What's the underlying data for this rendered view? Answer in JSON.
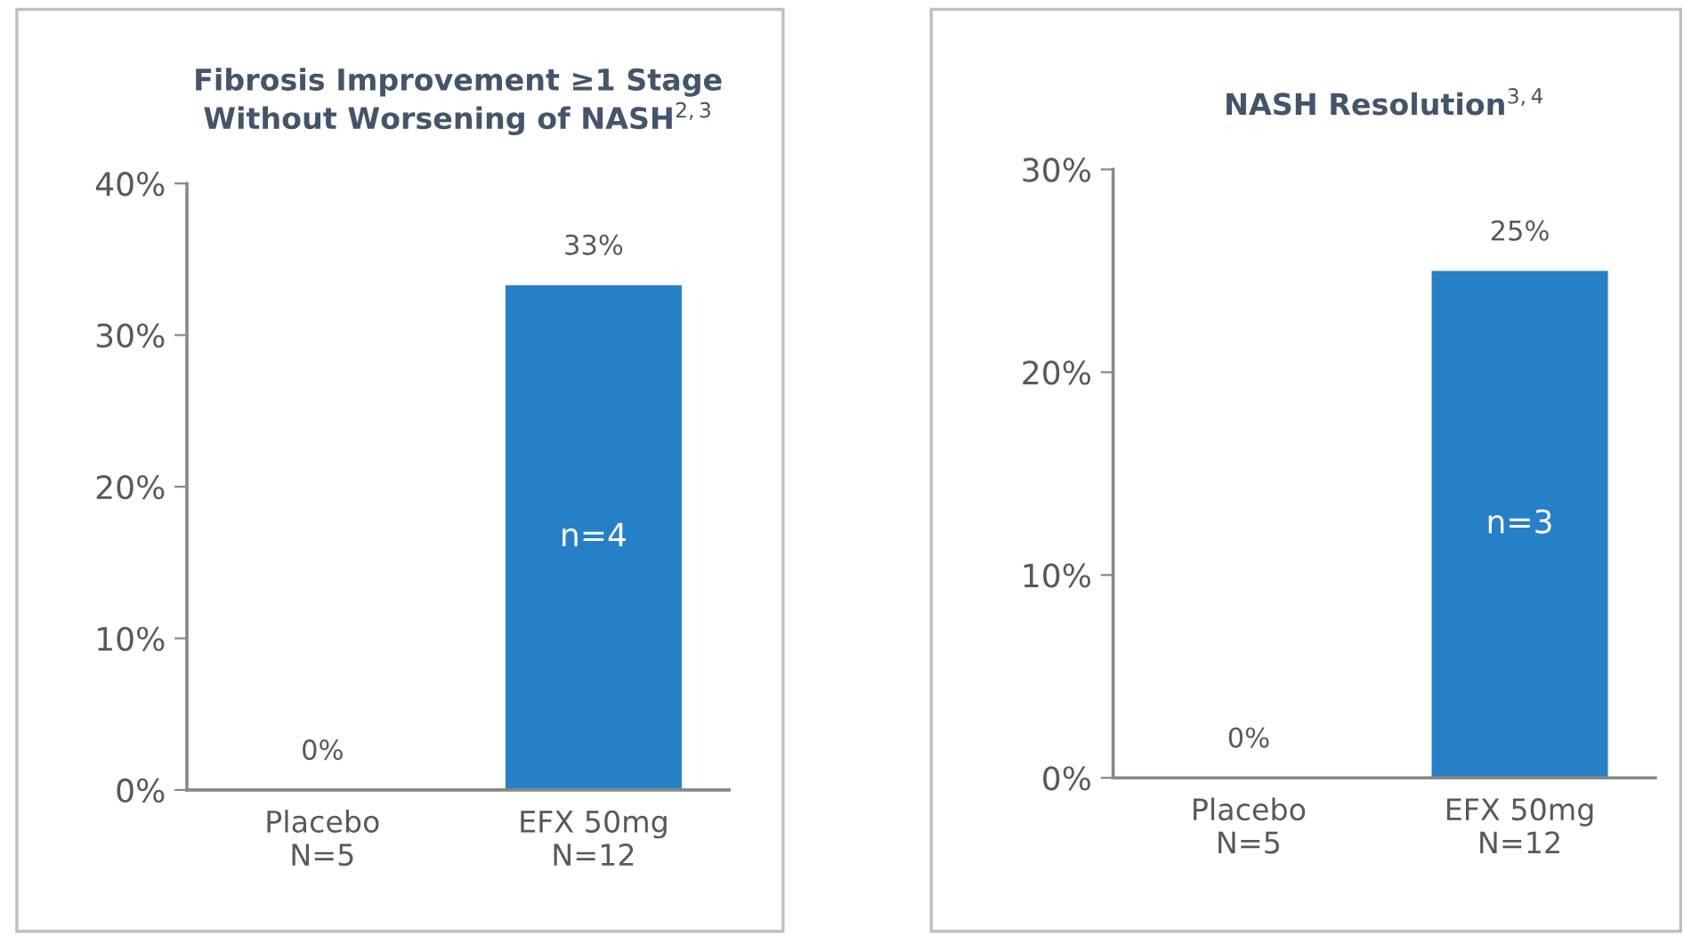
{
  "chart_data": [
    {
      "type": "bar",
      "title": "Fibrosis Improvement ≥1 Stage\nWithout Worsening of NASH$^{2,3}$",
      "categories": [
        "Placebo\nN=5",
        "EFX 50mg\nN=12"
      ],
      "values": [
        0,
        33.3
      ],
      "value_labels": [
        "0%",
        "33%"
      ],
      "color": "#2680c8",
      "ylim": [
        0,
        40
      ],
      "yticks": [
        {
          "value": 0,
          "label": "0%"
        },
        {
          "value": 10,
          "label": "10%"
        },
        {
          "value": 20,
          "label": "20%"
        },
        {
          "value": 30,
          "label": "30%"
        },
        {
          "value": 40,
          "label": "40%"
        }
      ],
      "grid": false,
      "annotations": [
        "n=4"
      ]
    },
    {
      "type": "bar",
      "title": "NASH Resolution$^{3,4}$",
      "categories": [
        "Placebo\nN=5",
        "EFX 50mg\nN=12"
      ],
      "values": [
        0,
        25
      ],
      "value_labels": [
        "0%",
        "25%"
      ],
      "color": "#2680c8",
      "ylim": [
        0,
        30
      ],
      "yticks": [
        {
          "value": 0,
          "label": "0%"
        },
        {
          "value": 10,
          "label": "10%"
        },
        {
          "value": 20,
          "label": "20%"
        },
        {
          "value": 30,
          "label": "30%"
        }
      ],
      "grid": false,
      "annotations": [
        "n=3"
      ]
    }
  ]
}
